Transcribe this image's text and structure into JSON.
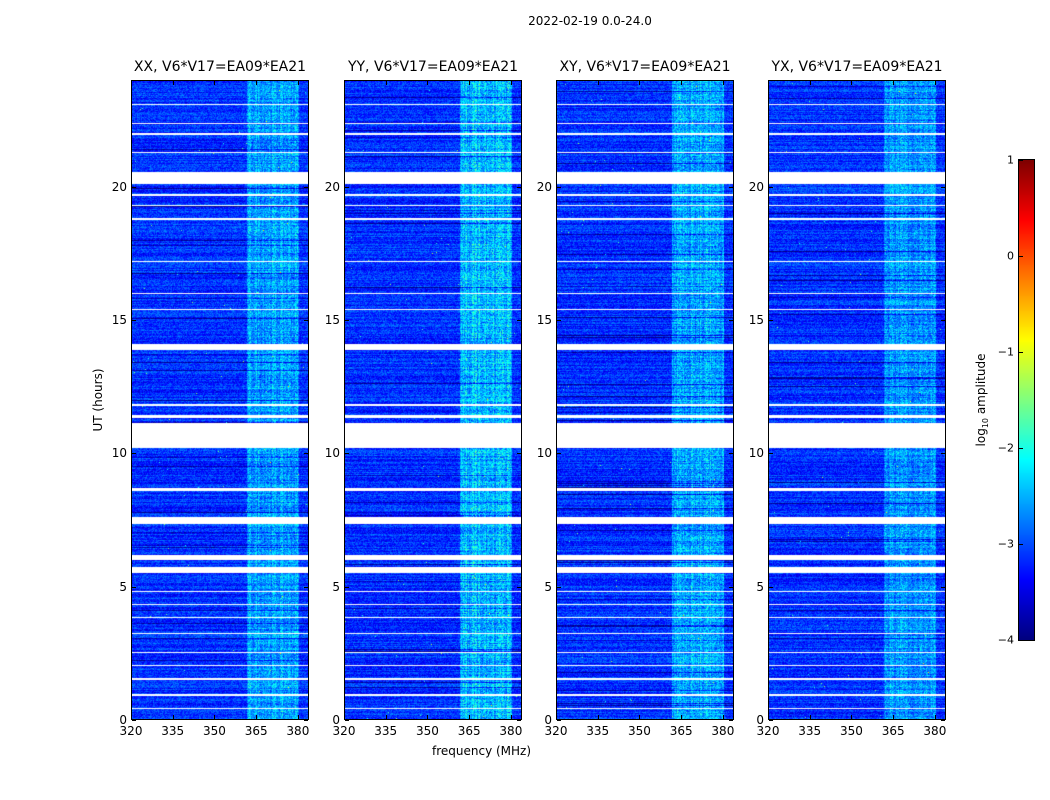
{
  "chart_data": {
    "type": "heatmap",
    "title": "2022-02-19 0.0-24.0",
    "xlabel": "frequency (MHz)",
    "ylabel": "UT (hours)",
    "xlim": [
      320,
      384
    ],
    "ylim": [
      0,
      24
    ],
    "xticks": [
      "320",
      "335",
      "350",
      "365",
      "380"
    ],
    "xtick_values": [
      320,
      335,
      350,
      365,
      380
    ],
    "yticks": [
      "0",
      "5",
      "10",
      "15",
      "20"
    ],
    "ytick_values": [
      0,
      5,
      10,
      15,
      20
    ],
    "panels": [
      {
        "title": "XX, V6*V17=EA09*EA21",
        "band_level": 0.55
      },
      {
        "title": "YY, V6*V17=EA09*EA21",
        "band_level": 0.7
      },
      {
        "title": "XY, V6*V17=EA09*EA21",
        "band_level": 0.6
      },
      {
        "title": "YX, V6*V17=EA09*EA21",
        "band_level": 0.5
      }
    ],
    "rfi_band_mhz": [
      361,
      380
    ],
    "background_log10_amplitude": -3.2,
    "band_log10_amplitude": -2.2,
    "flagged_ut_ranges": [
      [
        0.4,
        0.45
      ],
      [
        0.9,
        0.95
      ],
      [
        1.5,
        1.55
      ],
      [
        2.0,
        2.05
      ],
      [
        2.5,
        2.55
      ],
      [
        3.2,
        3.25
      ],
      [
        3.8,
        3.85
      ],
      [
        4.3,
        4.35
      ],
      [
        4.8,
        4.85
      ],
      [
        5.5,
        5.72
      ],
      [
        6.0,
        6.2
      ],
      [
        7.35,
        7.6
      ],
      [
        8.6,
        8.7
      ],
      [
        10.2,
        11.15
      ],
      [
        11.35,
        11.45
      ],
      [
        11.8,
        11.85
      ],
      [
        13.9,
        14.12
      ],
      [
        15.4,
        15.45
      ],
      [
        16.0,
        16.06
      ],
      [
        17.2,
        17.25
      ],
      [
        18.8,
        18.85
      ],
      [
        19.3,
        19.35
      ],
      [
        19.7,
        19.75
      ],
      [
        20.15,
        20.58
      ],
      [
        21.3,
        21.35
      ],
      [
        22.0,
        22.05
      ],
      [
        22.4,
        22.45
      ],
      [
        23.1,
        23.15
      ]
    ],
    "colorbar": {
      "label": "log10 amplitude",
      "label_main": "log",
      "label_sub": "10",
      "label_rest": " amplitude",
      "range": [
        -4,
        1
      ],
      "ticks": [
        "1",
        "0",
        "−1",
        "−2",
        "−3",
        "−4"
      ],
      "tick_values": [
        1,
        0,
        -1,
        -2,
        -3,
        -4
      ],
      "colormap": "jet"
    }
  }
}
